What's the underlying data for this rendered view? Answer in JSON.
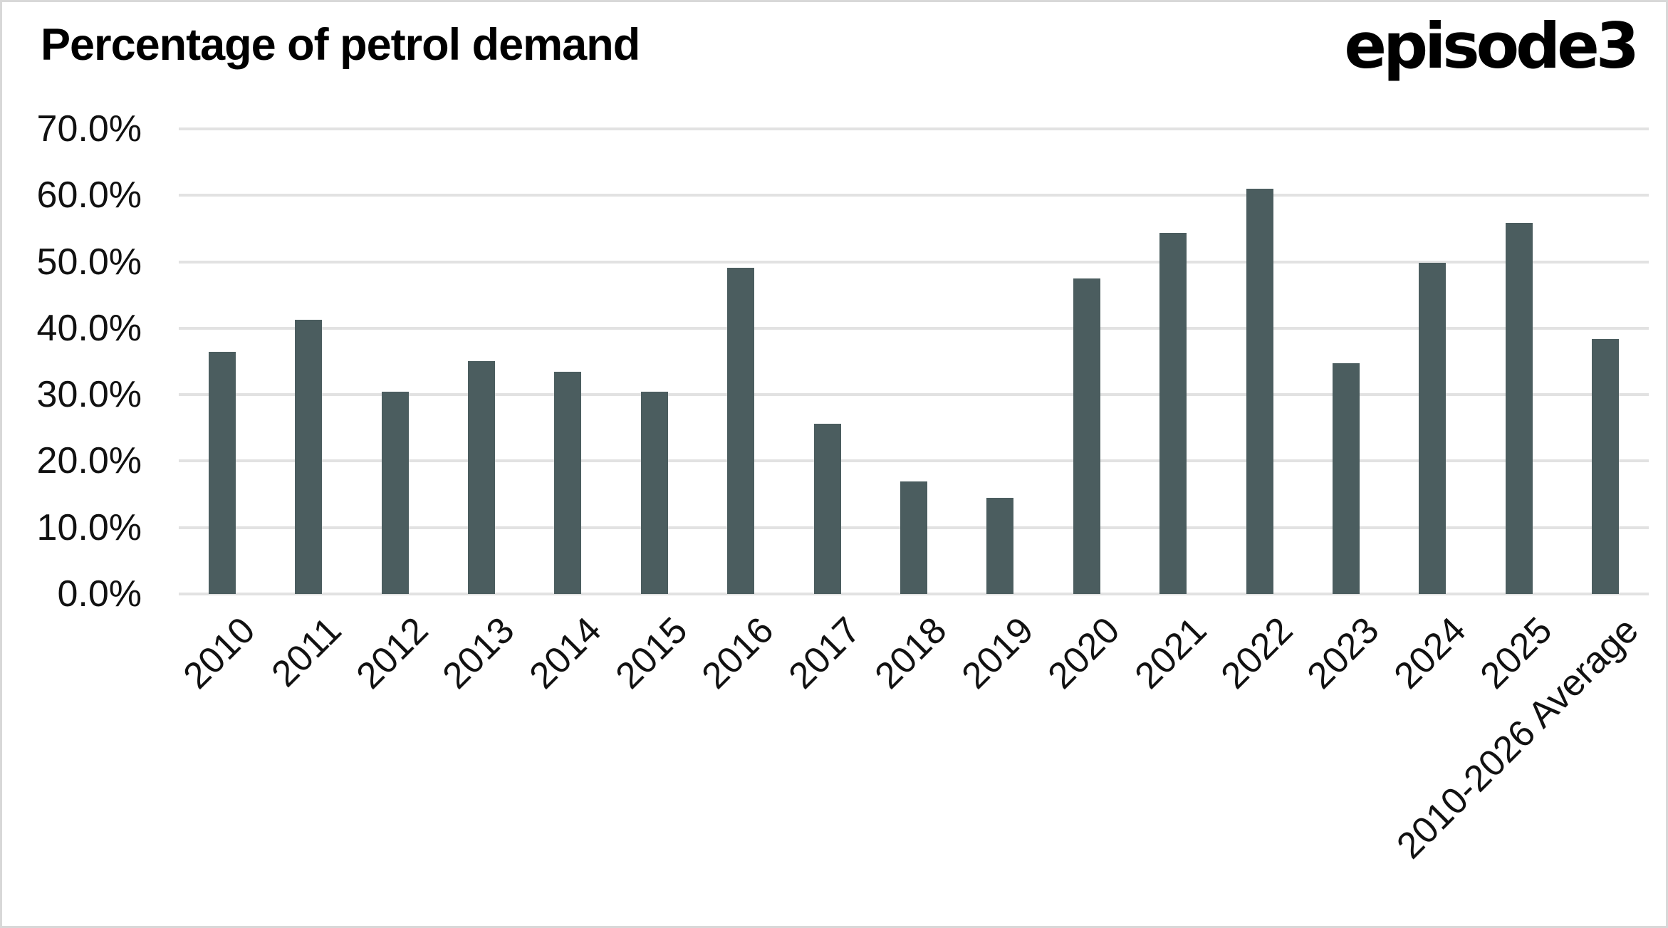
{
  "header": {
    "title": "Percentage of petrol demand",
    "logo_text": "episode3"
  },
  "chart_data": {
    "type": "bar",
    "title": "Percentage of petrol demand",
    "categories": [
      "2010",
      "2011",
      "2012",
      "2013",
      "2014",
      "2015",
      "2016",
      "2017",
      "2018",
      "2019",
      "2020",
      "2021",
      "2022",
      "2023",
      "2024",
      "2025",
      "2010-2026 Average"
    ],
    "values": [
      36.5,
      41.3,
      30.4,
      35.1,
      33.4,
      30.4,
      49.1,
      25.6,
      16.9,
      14.5,
      47.5,
      54.4,
      61.0,
      34.7,
      49.8,
      55.8,
      38.4
    ],
    "value_unit": "percent",
    "xlabel": "",
    "ylabel": "",
    "y_axis": {
      "min": 0,
      "max": 70,
      "step": 10,
      "tick_labels": [
        "70.0%",
        "60.0%",
        "50.0%",
        "40.0%",
        "30.0%",
        "20.0%",
        "10.0%",
        "0.0%"
      ]
    },
    "grid": true,
    "legend": false,
    "colors": {
      "bar": "#4b5d5f",
      "gridline": "#e2e2e2",
      "text": "#111111",
      "background": "#ffffff"
    }
  }
}
